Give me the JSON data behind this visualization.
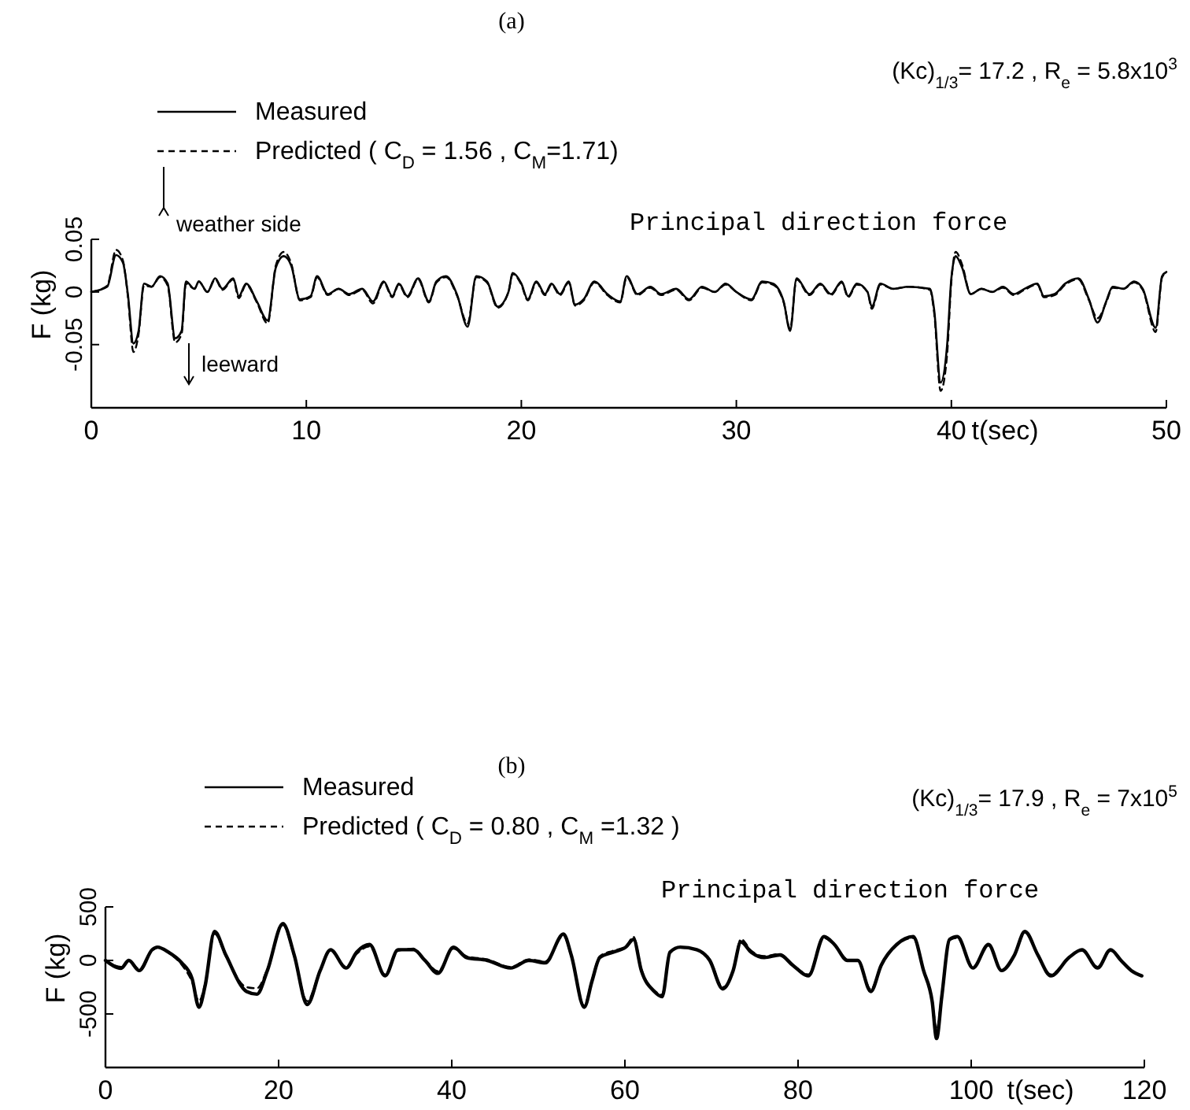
{
  "chart_data": [
    {
      "type": "line",
      "title": "(a)",
      "subtitle": "(Kc)$_{1/3}$= 17.2   ,   R$_{e}$ = 5.8x10$^{3}$",
      "xlabel": "t(sec)",
      "ylabel": "F (kg)",
      "legend": "top left",
      "annotations": [
        "Principal direction force",
        "weather side",
        "leeward"
      ],
      "xlim": [
        0,
        50
      ],
      "ylim": [
        -0.11,
        0.05
      ],
      "xticks": [
        0,
        10,
        20,
        30,
        40,
        50
      ],
      "yticks": [
        -0.05,
        0,
        0.05
      ],
      "x": [
        0,
        0.74,
        1.15,
        1.47,
        1.7,
        1.96,
        2.2,
        2.45,
        2.8,
        3.2,
        3.55,
        3.9,
        4.2,
        4.4,
        4.8,
        5.0,
        5.4,
        5.76,
        6.1,
        6.6,
        6.86,
        7.2,
        7.7,
        8.2,
        8.58,
        8.95,
        9.3,
        9.7,
        10.2,
        10.5,
        11.0,
        11.5,
        12.0,
        12.6,
        13.1,
        13.6,
        14.0,
        14.3,
        14.7,
        15.2,
        15.7,
        16.05,
        16.5,
        17.0,
        17.5,
        17.9,
        18.4,
        18.9,
        19.4,
        19.6,
        20.0,
        20.3,
        20.7,
        21.1,
        21.4,
        21.8,
        22.2,
        22.5,
        22.9,
        23.4,
        24.0,
        24.6,
        24.9,
        25.4,
        26.0,
        26.5,
        27.2,
        27.8,
        28.4,
        29.0,
        29.5,
        30.0,
        30.7,
        31.2,
        31.7,
        32.2,
        32.5,
        32.8,
        33.4,
        33.9,
        34.4,
        34.9,
        35.2,
        35.6,
        36.1,
        36.3,
        36.7,
        37.3,
        38.0,
        39.0,
        39.2,
        39.5,
        39.8,
        40.0,
        40.2,
        40.5,
        40.9,
        41.4,
        41.9,
        42.4,
        42.9,
        43.4,
        44.0,
        44.3,
        44.8,
        45.3,
        45.9,
        46.4,
        46.8,
        47.2,
        47.5,
        48.0,
        48.5,
        48.9,
        49.5,
        49.8,
        50.0
      ],
      "series": [
        {
          "name": "Measured",
          "color": "#000000",
          "line_style": "solid",
          "values": [
            0,
            0.005,
            0.035,
            0.028,
            -0.002,
            -0.049,
            -0.037,
            0.008,
            0.005,
            0.015,
            0.008,
            -0.044,
            -0.037,
            0.01,
            0.003,
            0.01,
            0,
            0.013,
            0.003,
            0.013,
            -0.004,
            0.008,
            -0.009,
            -0.027,
            0.023,
            0.034,
            0.025,
            -0.007,
            -0.004,
            0.015,
            -0.002,
            0.003,
            -0.002,
            0.003,
            -0.009,
            0.01,
            -0.004,
            0.008,
            -0.004,
            0.013,
            -0.009,
            0.01,
            0.015,
            -0.002,
            -0.033,
            0.015,
            0.01,
            -0.014,
            0,
            0.018,
            0.008,
            -0.007,
            0.01,
            -0.002,
            0.008,
            -0.002,
            0.01,
            -0.012,
            -0.007,
            0.01,
            -0.002,
            -0.009,
            0.015,
            -0.002,
            0.005,
            -0.002,
            0.003,
            -0.007,
            0.005,
            0,
            0.008,
            0,
            -0.007,
            0.01,
            0.008,
            -0.009,
            -0.037,
            0.013,
            -0.002,
            0.008,
            -0.002,
            0.01,
            -0.004,
            0.008,
            0,
            -0.014,
            0.008,
            0.003,
            0.005,
            0.003,
            -0.017,
            -0.086,
            -0.051,
            0.013,
            0.034,
            0.023,
            -0.002,
            0.003,
            0,
            0.005,
            -0.002,
            0.003,
            0.008,
            -0.004,
            -0.002,
            0.008,
            0.013,
            -0.007,
            -0.029,
            -0.009,
            0.005,
            0.003,
            0.01,
            0.003,
            -0.034,
            0.015,
            0.019
          ]
        },
        {
          "name": "Predicted ( C$_{D}$ = 1.56  ,  C$_{M}$=1.71)",
          "color": "#000000",
          "line_style": "dashed",
          "values": [
            0,
            0.006,
            0.04,
            0.03,
            -0.004,
            -0.057,
            -0.04,
            0.006,
            0.005,
            0.014,
            0.006,
            -0.048,
            -0.04,
            0.008,
            0.003,
            0.01,
            0,
            0.012,
            0.002,
            0.012,
            -0.006,
            0.007,
            -0.01,
            -0.03,
            0.025,
            0.038,
            0.027,
            -0.008,
            -0.005,
            0.014,
            -0.003,
            0.003,
            -0.003,
            0.002,
            -0.011,
            0.009,
            -0.005,
            0.007,
            -0.005,
            0.012,
            -0.01,
            0.009,
            0.014,
            -0.003,
            -0.03,
            0.014,
            0.009,
            -0.015,
            0,
            0.017,
            0.007,
            -0.008,
            0.009,
            -0.003,
            0.007,
            -0.003,
            0.009,
            -0.013,
            -0.008,
            0.009,
            -0.003,
            -0.01,
            0.014,
            -0.003,
            0.004,
            -0.003,
            0.002,
            -0.008,
            0.004,
            0,
            0.007,
            0,
            -0.008,
            0.009,
            0.007,
            -0.01,
            -0.035,
            0.012,
            -0.003,
            0.007,
            -0.003,
            0.009,
            -0.005,
            0.007,
            0,
            -0.016,
            0.007,
            0.003,
            0.005,
            0.002,
            -0.02,
            -0.094,
            -0.06,
            0.01,
            0.038,
            0.026,
            -0.002,
            0.003,
            0,
            0.004,
            -0.003,
            0.002,
            0.007,
            -0.005,
            -0.003,
            0.007,
            0.012,
            -0.008,
            -0.025,
            -0.01,
            0.004,
            0.003,
            0.009,
            0.002,
            -0.038,
            0.014,
            0.018
          ]
        }
      ]
    },
    {
      "type": "line",
      "title": "(b)",
      "subtitle": "(Kc)$_{1/3}$= 17.9  ,  R$_{e}$ = 7x10$^{5}$",
      "xlabel": "t(sec)",
      "ylabel": "F (kg)",
      "legend": "top left",
      "annotations": [
        "Principal direction force"
      ],
      "xlim": [
        0,
        120
      ],
      "ylim": [
        -1000,
        500
      ],
      "xticks": [
        0,
        20,
        40,
        60,
        80,
        100,
        120
      ],
      "yticks": [
        -500,
        0,
        500
      ],
      "x": [
        0,
        1.8,
        2.7,
        3.9,
        5.4,
        6.0,
        7.3,
        8.8,
        10.0,
        10.8,
        11.5,
        12.6,
        13.9,
        16.3,
        17.5,
        18.7,
        20.5,
        21.8,
        23.3,
        24.8,
        26.0,
        27.8,
        29.0,
        30.5,
        32.3,
        33.8,
        35.6,
        36.9,
        38.4,
        40.2,
        41.7,
        44.1,
        46.8,
        48.9,
        50.8,
        52.9,
        53.8,
        55.3,
        56.2,
        57.1,
        58.6,
        60.1,
        61.0,
        61.9,
        63.4,
        64.3,
        65.2,
        66.4,
        68.3,
        69.8,
        71.3,
        72.5,
        73.4,
        74.6,
        76.1,
        77.9,
        79.4,
        81.2,
        83.0,
        84.2,
        85.7,
        86.9,
        88.4,
        89.6,
        91.4,
        93.3,
        94.5,
        95.5,
        96.0,
        96.6,
        97.5,
        98.4,
        100.2,
        102.0,
        103.5,
        105.0,
        106.2,
        107.7,
        109.2,
        111.3,
        112.8,
        114.6,
        116.1,
        117.3,
        118.5,
        119.7
      ],
      "series": [
        {
          "name": "Measured",
          "color": "#000000",
          "line_style": "solid",
          "values": [
            0,
            -73,
            0,
            -95,
            100,
            124,
            76,
            -22,
            -168,
            -437,
            -241,
            270,
            51,
            -290,
            -315,
            -95,
            344,
            51,
            -412,
            -95,
            100,
            -71,
            76,
            149,
            -144,
            100,
            100,
            0,
            -120,
            124,
            27,
            0,
            -71,
            0,
            -22,
            246,
            51,
            -437,
            -193,
            27,
            76,
            124,
            197,
            -95,
            -290,
            -339,
            76,
            124,
            100,
            0,
            -266,
            -95,
            173,
            76,
            27,
            51,
            -46,
            -144,
            222,
            149,
            0,
            0,
            -290,
            -46,
            149,
            222,
            -95,
            -388,
            -729,
            -339,
            197,
            222,
            -71,
            149,
            -95,
            51,
            270,
            51,
            -144,
            27,
            100,
            -71,
            100,
            0,
            -95,
            -144
          ]
        },
        {
          "name": "Predicted ( C$_{D}$ = 0.80  ,  C$_{M}$ =1.32 )",
          "color": "#000000",
          "line_style": "dashed",
          "values": [
            0,
            -60,
            0,
            -80,
            90,
            120,
            70,
            -40,
            -200,
            -380,
            -220,
            250,
            40,
            -250,
            -260,
            -80,
            330,
            40,
            -380,
            -90,
            90,
            -60,
            60,
            130,
            -130,
            90,
            110,
            10,
            -100,
            110,
            40,
            10,
            -60,
            10,
            -10,
            230,
            40,
            -420,
            -180,
            40,
            90,
            130,
            220,
            -80,
            -280,
            -320,
            80,
            120,
            100,
            10,
            -250,
            -90,
            200,
            90,
            40,
            60,
            -40,
            -130,
            210,
            140,
            10,
            0,
            -270,
            -50,
            140,
            210,
            -100,
            -370,
            -650,
            -320,
            190,
            210,
            -60,
            140,
            -90,
            50,
            260,
            50,
            -130,
            30,
            90,
            -60,
            90,
            0,
            -90,
            -140
          ]
        }
      ]
    }
  ]
}
